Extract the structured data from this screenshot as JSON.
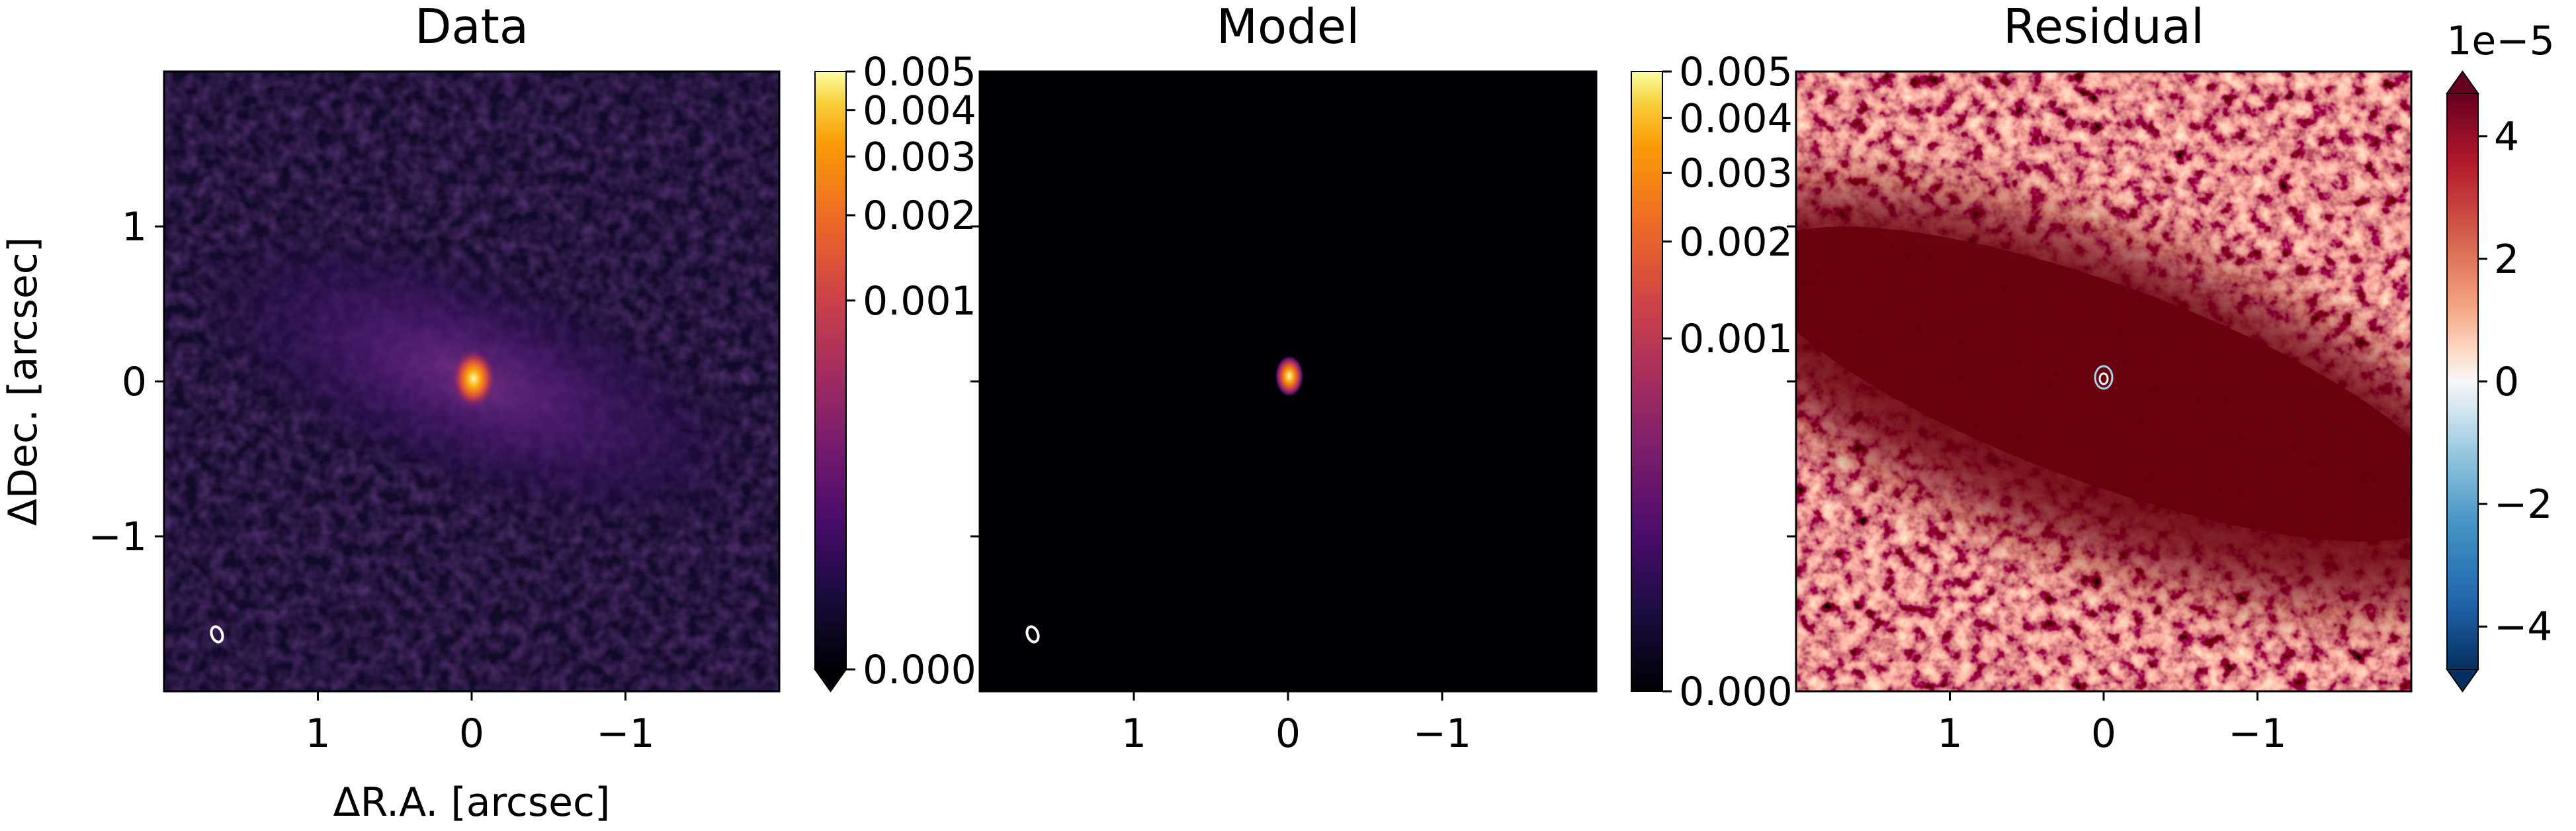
{
  "chart_data": [
    {
      "type": "heatmap",
      "title": "Data",
      "xlabel": "ΔR.A. [arcsec]",
      "ylabel": "ΔDec. [arcsec]",
      "xlim": [
        2,
        -2
      ],
      "ylim": [
        -2,
        2
      ],
      "xticks": [
        1,
        0,
        -1
      ],
      "xtick_labels": [
        "1",
        "0",
        "−1"
      ],
      "yticks": [
        1,
        0,
        -1
      ],
      "ytick_labels": [
        "1",
        "0",
        "−1"
      ],
      "colormap": "inferno",
      "colorbar": {
        "tick_labels": [
          "0.005",
          "0.004",
          "0.003",
          "0.002",
          "0.001",
          "0.000"
        ],
        "extend": "min"
      },
      "features": {
        "peak": [
          0,
          0
        ],
        "disk_position_angle_deg": 105,
        "beam_ellipse_center": [
          1.7,
          -1.65
        ]
      }
    },
    {
      "type": "heatmap",
      "title": "Model",
      "xlim": [
        2,
        -2
      ],
      "ylim": [
        -2,
        2
      ],
      "xticks": [
        1,
        0,
        -1
      ],
      "xtick_labels": [
        "1",
        "0",
        "−1"
      ],
      "colormap": "inferno",
      "colorbar": {
        "tick_labels": [
          "0.005",
          "0.004",
          "0.003",
          "0.002",
          "0.001",
          "0.000"
        ],
        "extend": "neither"
      },
      "features": {
        "peak": [
          0,
          0
        ],
        "beam_ellipse_center": [
          1.7,
          -1.65
        ]
      }
    },
    {
      "type": "heatmap",
      "title": "Residual",
      "xlim": [
        2,
        -2
      ],
      "ylim": [
        -2,
        2
      ],
      "xticks": [
        1,
        0,
        -1
      ],
      "xtick_labels": [
        "1",
        "0",
        "−1"
      ],
      "colormap": "RdBu_r",
      "colorbar": {
        "offset_text": "1e−5",
        "ticks": [
          4,
          2,
          0,
          -2,
          -4
        ],
        "tick_labels": [
          "4",
          "2",
          "0",
          "−2",
          "−4"
        ],
        "vmin": -4.7,
        "vmax": 4.7,
        "extend": "both"
      },
      "features": {
        "contour_center": [
          0,
          0
        ]
      }
    }
  ],
  "colors": {
    "inferno_bg": "#000004",
    "positive_residual": "#67000d",
    "negative_residual": "#2166ac",
    "beam": "#ffffff"
  }
}
